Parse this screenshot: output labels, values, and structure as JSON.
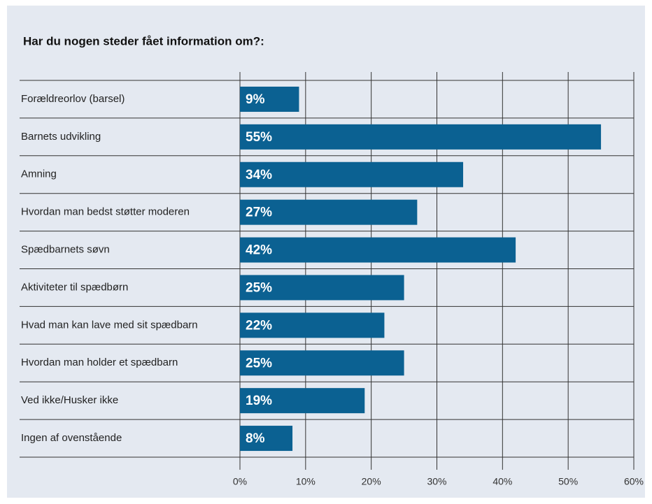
{
  "chart_data": {
    "type": "bar",
    "orientation": "horizontal",
    "title": "Har du nogen steder fået information om?:",
    "categories": [
      "Forældreorlov (barsel)",
      "Barnets udvikling",
      "Amning",
      "Hvordan man bedst støtter moderen",
      "Spædbarnets søvn",
      "Aktiviteter til spædbørn",
      "Hvad man kan lave med sit spædbarn",
      "Hvordan man holder et spædbarn",
      "Ved ikke/Husker ikke",
      "Ingen af ovenstående"
    ],
    "values": [
      9,
      55,
      34,
      27,
      42,
      25,
      22,
      25,
      19,
      8
    ],
    "value_labels": [
      "9%",
      "55%",
      "34%",
      "27%",
      "42%",
      "25%",
      "22%",
      "25%",
      "19%",
      "8%"
    ],
    "color": "#0b6192",
    "xlim": [
      0,
      60
    ],
    "xticks": [
      {
        "value": 0,
        "label": "0%"
      },
      {
        "value": 10,
        "label": "10%"
      },
      {
        "value": 20,
        "label": "20%"
      },
      {
        "value": 30,
        "label": "30%"
      },
      {
        "value": 40,
        "label": "40%"
      },
      {
        "value": 50,
        "label": "50%"
      },
      {
        "value": 60,
        "label": "60%"
      }
    ],
    "grid": true
  }
}
